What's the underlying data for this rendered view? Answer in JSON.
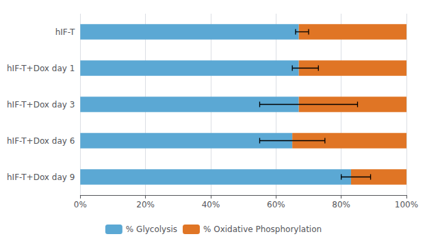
{
  "chart_data": {
    "type": "bar",
    "orientation": "horizontal",
    "stacked": true,
    "categories": [
      "hIF-T",
      "hIF-T+Dox day 1",
      "hIF-T+Dox day 3",
      "hIF-T+Dox day 6",
      "hIF-T+Dox day 9"
    ],
    "series": [
      {
        "name": "% Glycolysis",
        "color": "#5BA8D4",
        "values": [
          0.67,
          0.67,
          0.67,
          0.65,
          0.83
        ]
      },
      {
        "name": "% Oxidative Phosphorylation",
        "color": "#E07525",
        "values": [
          0.33,
          0.33,
          0.33,
          0.35,
          0.17
        ]
      }
    ],
    "error_center": [
      0.68,
      0.68,
      0.63,
      0.62,
      0.84
    ],
    "error_minus": [
      0.02,
      0.03,
      0.08,
      0.07,
      0.04
    ],
    "error_plus": [
      0.02,
      0.05,
      0.22,
      0.13,
      0.05
    ],
    "xlim": [
      0,
      1.0
    ],
    "xticks": [
      {
        "value": 0,
        "label": "0%"
      },
      {
        "value": 0.2,
        "label": "20%"
      },
      {
        "value": 0.4,
        "label": "40%"
      },
      {
        "value": 0.6,
        "label": "60%"
      },
      {
        "value": 0.8,
        "label": "80%"
      },
      {
        "value": 1.0,
        "label": "100%"
      }
    ],
    "grid": true,
    "legend": "bottom"
  }
}
